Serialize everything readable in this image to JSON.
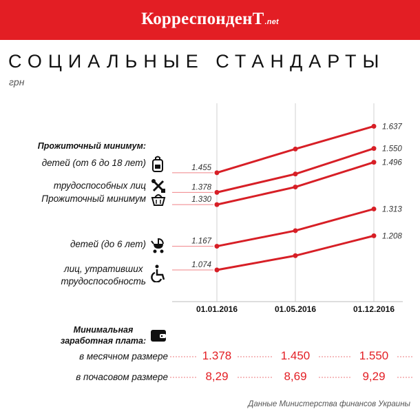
{
  "header": {
    "logo": "КорреспонденТ",
    "logo_suffix": ".net",
    "bg_color": "#e31e24"
  },
  "title": "СОЦИАЛЬНЫЕ СТАНДАРТЫ",
  "unit": "грн",
  "section_living_wage": "Прожиточный минимум:",
  "series_labels": {
    "children_6_18": "детей (от 6 до 18 лет)",
    "able_bodied": "трудоспособных лиц",
    "living_wage": "Прожиточный минимум",
    "children_under_6": "детей (до 6 лет)",
    "disabled_line1": "лиц, утративших",
    "disabled_line2": "трудоспособность"
  },
  "icons": {
    "children_6_18": "backpack-icon",
    "able_bodied": "tools-icon",
    "living_wage": "basket-icon",
    "children_under_6": "stroller-icon",
    "disabled": "wheelchair-icon",
    "min_wage": "wallet-icon"
  },
  "chart_data": {
    "type": "line",
    "x": [
      "01.01.2016",
      "01.05.2016",
      "01.12.2016"
    ],
    "ylim": [
      0.95,
      1.7
    ],
    "grid": false,
    "line_color": "#d71f26",
    "series": [
      {
        "key": "children_6_18",
        "values": [
          1.455,
          1.548,
          1.637
        ],
        "labels": [
          "1.455",
          null,
          "1.637"
        ]
      },
      {
        "key": "able_bodied",
        "values": [
          1.378,
          1.45,
          1.55
        ],
        "labels": [
          "1.378",
          null,
          "1.550"
        ]
      },
      {
        "key": "living_wage",
        "values": [
          1.33,
          1.399,
          1.496
        ],
        "labels": [
          "1.330",
          null,
          "1.496"
        ]
      },
      {
        "key": "children_under_6",
        "values": [
          1.167,
          1.228,
          1.313
        ],
        "labels": [
          "1.167",
          null,
          "1.313"
        ]
      },
      {
        "key": "disabled",
        "values": [
          1.074,
          1.13,
          1.208
        ],
        "labels": [
          "1.074",
          null,
          "1.208"
        ]
      }
    ]
  },
  "min_wage": {
    "title_line1": "Минимальная",
    "title_line2": "заработная плата:",
    "rows": [
      {
        "label": "в месячном размере",
        "values": [
          "1.378",
          "1.450",
          "1.550"
        ]
      },
      {
        "label": "в почасовом размере",
        "values": [
          "8,29",
          "8,69",
          "9,29"
        ]
      }
    ]
  },
  "source": "Данные Министерства финансов Украины"
}
